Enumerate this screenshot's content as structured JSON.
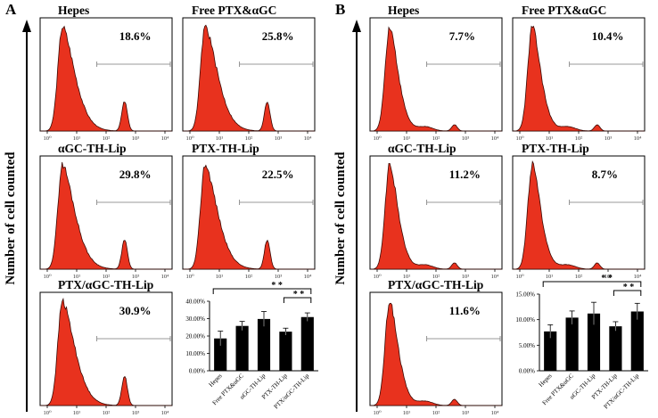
{
  "figure": {
    "panels": [
      {
        "letter": "A",
        "y_axis_label": "Number of cell counted",
        "histograms": [
          {
            "name": "Hepes",
            "percent": "18.6%",
            "peak2": "large"
          },
          {
            "name": "Free PTX&αGC",
            "percent": "25.8%",
            "peak2": "large"
          },
          {
            "name": "αGC-TH-Lip",
            "percent": "29.8%",
            "peak2": "large"
          },
          {
            "name": "PTX-TH-Lip",
            "percent": "22.5%",
            "peak2": "large"
          },
          {
            "name": "PTX/αGC-TH-Lip",
            "percent": "30.9%",
            "peak2": "large"
          }
        ]
      },
      {
        "letter": "B",
        "y_axis_label": "Number of cell counted",
        "histograms": [
          {
            "name": "Hepes",
            "percent": "7.7%",
            "peak2": "small"
          },
          {
            "name": "Free PTX&αGC",
            "percent": "10.4%",
            "peak2": "small"
          },
          {
            "name": "αGC-TH-Lip",
            "percent": "11.2%",
            "peak2": "small"
          },
          {
            "name": "PTX-TH-Lip",
            "percent": "8.7%",
            "peak2": "small"
          },
          {
            "name": "PTX/αGC-TH-Lip",
            "percent": "11.6%",
            "peak2": "small"
          }
        ]
      }
    ],
    "hist_x_ticks": [
      "10⁰",
      "10¹",
      "10²",
      "10³",
      "10⁴"
    ],
    "colors": {
      "histogram_fill": "#e8321e",
      "histogram_outline": "#3a0a05",
      "bar_fill": "#000000"
    }
  },
  "chart_data": [
    {
      "panel": "A",
      "type": "bar",
      "categories": [
        "Hepes",
        "Free PTX&αGC",
        "αGC-TH-Lip",
        "PTX-TH-Lip",
        "PTX/αGC-TH-Lip"
      ],
      "values": [
        18.6,
        25.8,
        29.8,
        22.5,
        30.9
      ],
      "errors": [
        4.2,
        2.6,
        4.3,
        2.0,
        2.4
      ],
      "ylim": [
        0,
        40
      ],
      "yticks": [
        "0.00%",
        "10.00%",
        "20.00%",
        "30.00%",
        "40.00%"
      ],
      "significance": [
        {
          "from": 0,
          "to": 4,
          "label": "* *"
        },
        {
          "from": 3,
          "to": 4,
          "label": "* *"
        }
      ]
    },
    {
      "panel": "B",
      "type": "bar",
      "categories": [
        "Hepes",
        "Free PTX&αGC",
        "αGC-TH-Lip",
        "PTX-TH-Lip",
        "PTX/αGC-TH-Lip"
      ],
      "values": [
        7.7,
        10.4,
        11.2,
        8.7,
        11.6
      ],
      "errors": [
        1.3,
        1.3,
        2.2,
        0.9,
        1.6
      ],
      "ylim": [
        0,
        15
      ],
      "yticks": [
        "0.00%",
        "5.00%",
        "10.00%",
        "15.00%"
      ],
      "significance": [
        {
          "from": 0,
          "to": 4,
          "label": "* *"
        },
        {
          "from": 3,
          "to": 4,
          "label": "* *"
        }
      ]
    }
  ]
}
